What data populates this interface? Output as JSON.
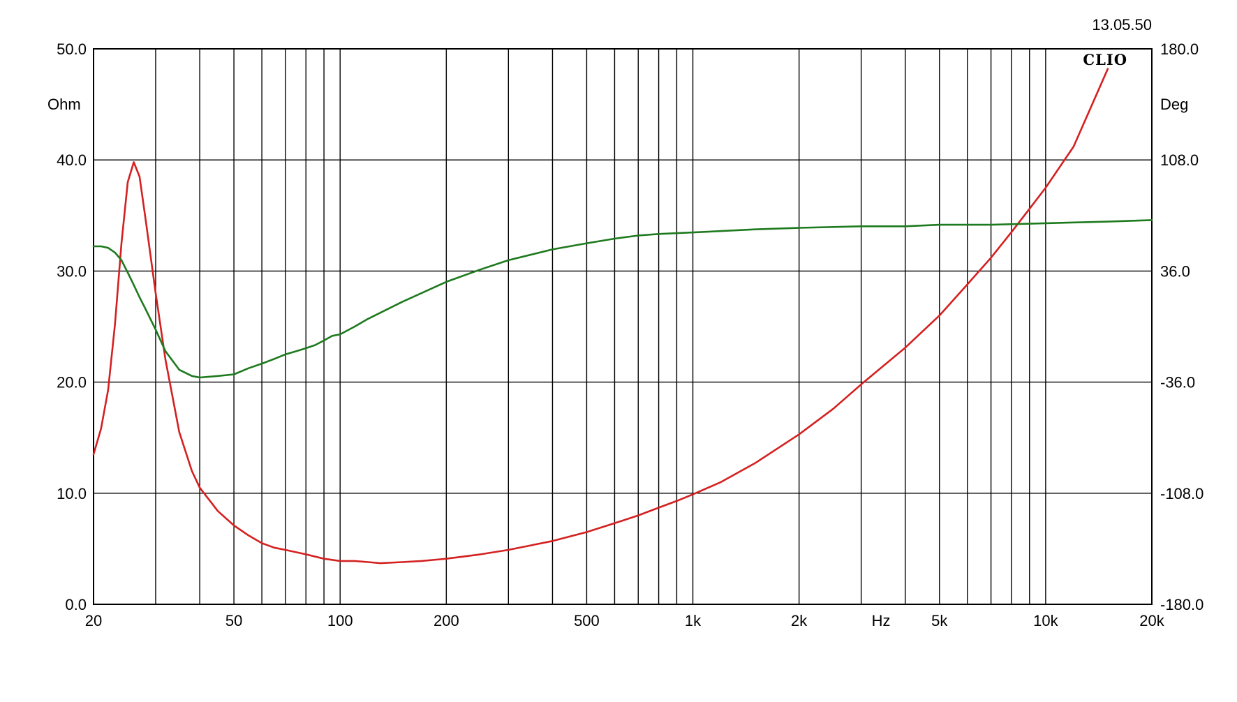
{
  "chart_data": {
    "type": "line",
    "title": "",
    "timestamp": "13.05.50",
    "brand": "CLIO",
    "x_axis": {
      "scale": "log",
      "unit_label": "Hz",
      "range": [
        20,
        20000
      ],
      "tick_labels": [
        {
          "value": 20,
          "label": "20"
        },
        {
          "value": 50,
          "label": "50"
        },
        {
          "value": 100,
          "label": "100"
        },
        {
          "value": 200,
          "label": "200"
        },
        {
          "value": 500,
          "label": "500"
        },
        {
          "value": 1000,
          "label": "1k"
        },
        {
          "value": 2000,
          "label": "2k"
        },
        {
          "value": 5000,
          "label": "5k"
        },
        {
          "value": 10000,
          "label": "10k"
        },
        {
          "value": 20000,
          "label": "20k"
        }
      ],
      "gridlines": [
        20,
        30,
        40,
        50,
        60,
        70,
        80,
        90,
        100,
        200,
        300,
        400,
        500,
        600,
        700,
        800,
        900,
        1000,
        2000,
        3000,
        4000,
        5000,
        6000,
        7000,
        8000,
        9000,
        10000,
        20000
      ]
    },
    "y_left": {
      "unit_label": "Ohm",
      "range": [
        0,
        50
      ],
      "ticks": [
        {
          "value": 0,
          "label": "0.0"
        },
        {
          "value": 10,
          "label": "10.0"
        },
        {
          "value": 20,
          "label": "20.0"
        },
        {
          "value": 30,
          "label": "30.0"
        },
        {
          "value": 40,
          "label": "40.0"
        },
        {
          "value": 50,
          "label": "50.0"
        }
      ]
    },
    "y_right": {
      "unit_label": "Deg",
      "range": [
        -180,
        180
      ],
      "ticks": [
        {
          "value": -180,
          "label": "-180.0"
        },
        {
          "value": -108,
          "label": "-108.0"
        },
        {
          "value": -36,
          "label": "-36.0"
        },
        {
          "value": 36,
          "label": "36.0"
        },
        {
          "value": 108,
          "label": "108.0"
        },
        {
          "value": 180,
          "label": "180.0"
        }
      ]
    },
    "grid": true,
    "series": [
      {
        "axis": "left",
        "color": "#d42020",
        "x": [
          20,
          21,
          22,
          23,
          24,
          25,
          26,
          27,
          28,
          30,
          32,
          35,
          38,
          40,
          45,
          50,
          55,
          60,
          65,
          70,
          80,
          90,
          100,
          110,
          120,
          130,
          150,
          170,
          200,
          250,
          300,
          400,
          500,
          600,
          700,
          800,
          900,
          1000,
          1200,
          1500,
          2000,
          2500,
          3000,
          4000,
          5000,
          6000,
          7000,
          8000,
          9000,
          10000,
          12000,
          15000
        ],
        "y": [
          13.5,
          15.8,
          19.3,
          25.2,
          32.5,
          38.0,
          39.8,
          38.5,
          35.0,
          28.0,
          22.0,
          15.5,
          12.0,
          10.5,
          8.4,
          7.1,
          6.2,
          5.5,
          5.1,
          4.9,
          4.5,
          4.1,
          3.9,
          3.9,
          3.8,
          3.7,
          3.8,
          3.9,
          4.1,
          4.5,
          4.9,
          5.7,
          6.5,
          7.3,
          8.0,
          8.7,
          9.3,
          9.9,
          11.0,
          12.7,
          15.3,
          17.6,
          19.8,
          23.1,
          26.0,
          28.8,
          31.2,
          33.5,
          35.6,
          37.5,
          41.2,
          48.2
        ]
      },
      {
        "axis": "right",
        "color": "#1e7a1e",
        "x": [
          20,
          21,
          22,
          23,
          24,
          25,
          26,
          27,
          28,
          30,
          32,
          35,
          38,
          40,
          45,
          50,
          55,
          60,
          65,
          70,
          75,
          80,
          85,
          90,
          95,
          100,
          110,
          120,
          150,
          200,
          250,
          300,
          400,
          500,
          600,
          700,
          800,
          1000,
          1500,
          2000,
          3000,
          4000,
          5000,
          7000,
          10000,
          15000,
          20000
        ],
        "y": [
          52,
          52,
          51,
          48,
          43,
          35,
          27,
          19,
          12,
          -2,
          -16,
          -28,
          -32,
          -33,
          -32,
          -31,
          -27,
          -24,
          -21,
          -18,
          -16,
          -14,
          -12,
          -9,
          -6,
          -5,
          0,
          5,
          16,
          29,
          37,
          43,
          50,
          54,
          57,
          59,
          60,
          61,
          63,
          64,
          65,
          65,
          66,
          66,
          67,
          68,
          69
        ]
      }
    ]
  }
}
